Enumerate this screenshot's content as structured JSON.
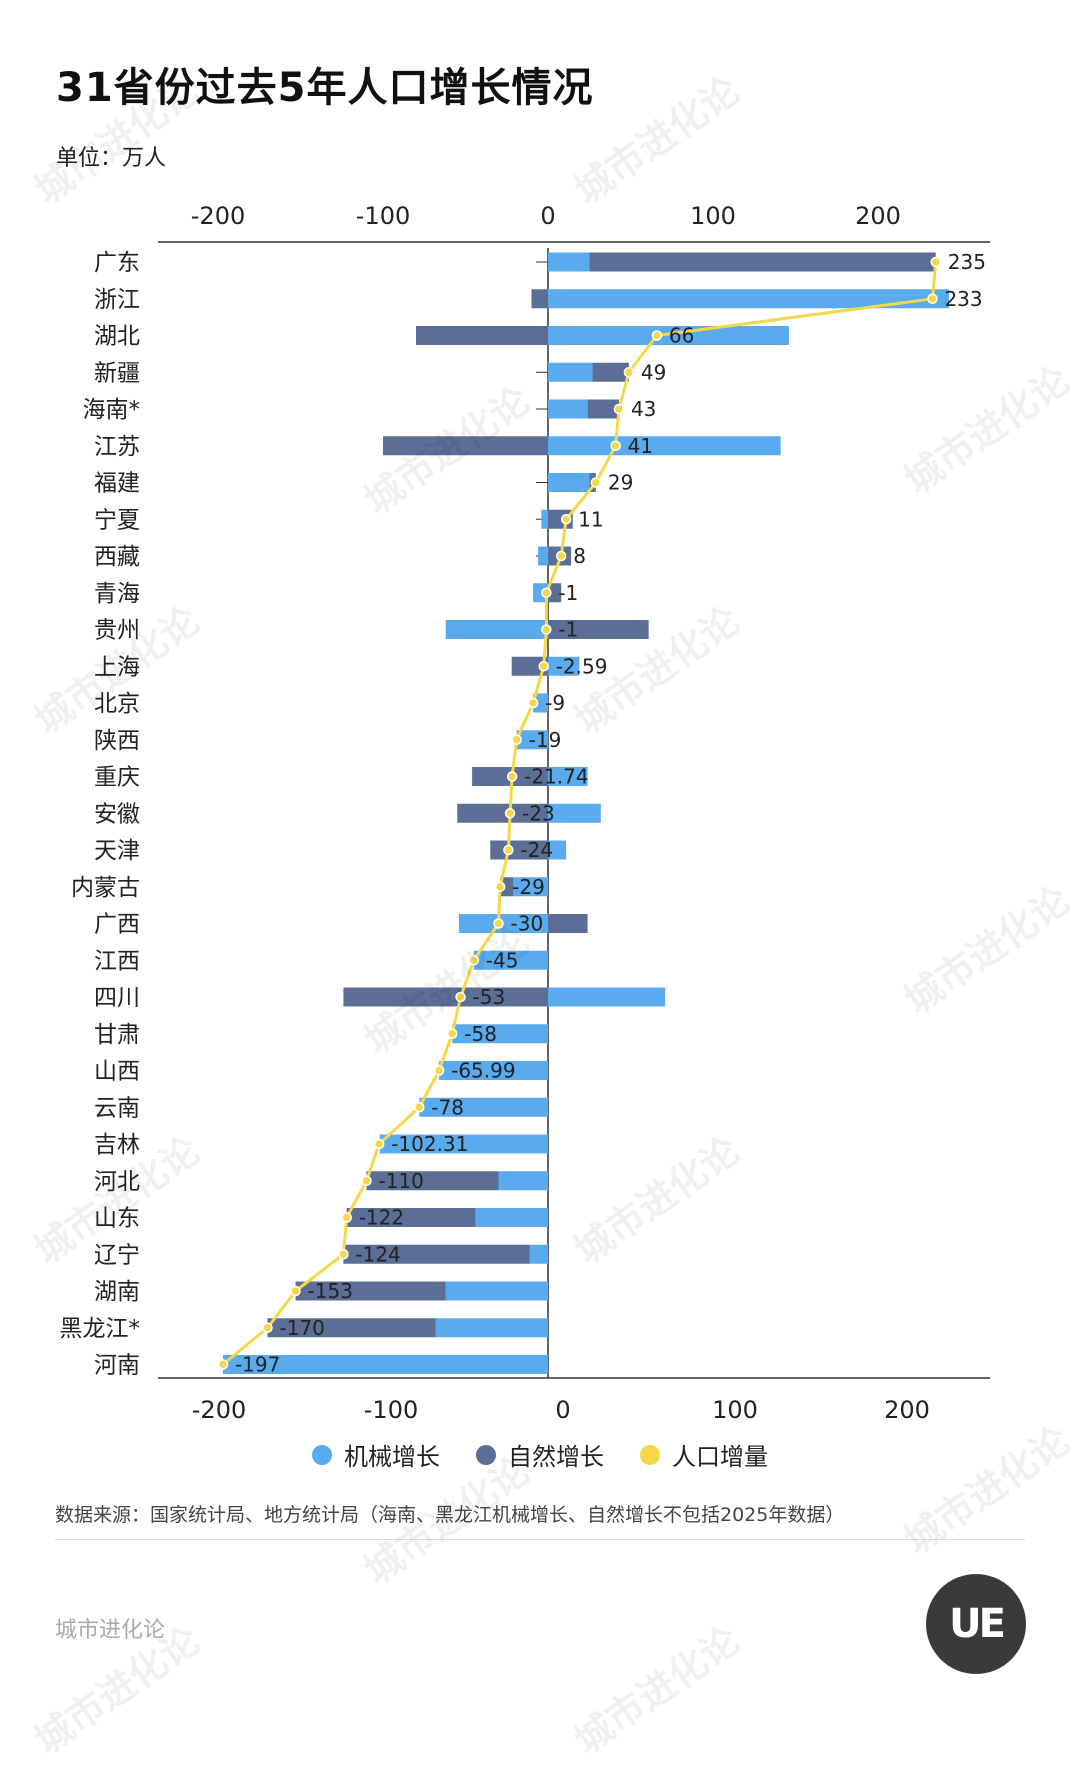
{
  "title": "31省份过去5年人口增长情况",
  "unit": "单位：万人",
  "source": "数据来源：国家统计局、地方统计局（海南、黑龙江机械增长、自然增长不包括2025年数据）",
  "footer": "城市进化论",
  "logo_text": "UE",
  "watermark": "城市进化论",
  "colors": {
    "mechanical": "#5aaaee",
    "natural": "#5b6e96",
    "total": "#f4d84a"
  },
  "chart_data": {
    "type": "bar",
    "orientation": "horizontal",
    "stacked": "diverging",
    "xlim": [
      -235,
      270
    ],
    "top_ticks": [
      -200,
      -100,
      0,
      100,
      200
    ],
    "bottom_ticks": [
      -200,
      -100,
      0,
      100,
      200
    ],
    "legend": {
      "placement": "bottom",
      "items": [
        "机械增长",
        "自然增长",
        "人口增量"
      ]
    },
    "categories": [
      "广东",
      "浙江",
      "湖北",
      "新疆",
      "海南*",
      "江苏",
      "福建",
      "宁夏",
      "西藏",
      "青海",
      "贵州",
      "上海",
      "北京",
      "陕西",
      "重庆",
      "安徽",
      "天津",
      "内蒙古",
      "广西",
      "江西",
      "四川",
      "甘肃",
      "山西",
      "云南",
      "吉林",
      "河北",
      "山东",
      "辽宁",
      "湖南",
      "黑龙江*",
      "河南"
    ],
    "series": [
      {
        "name": "机械增长",
        "values": [
          25,
          243,
          146,
          27,
          24,
          141,
          25,
          -4,
          -6,
          -9,
          -62,
          19,
          -9,
          -19,
          24,
          32,
          11,
          -21,
          -54,
          -45,
          71,
          -58,
          -66,
          -78,
          -102,
          -30,
          -44,
          -11,
          -62,
          -68,
          -197
        ]
      },
      {
        "name": "自然增长",
        "values": [
          210,
          -10,
          -80,
          22,
          19,
          -100,
          4,
          15,
          14,
          8,
          61,
          -22,
          0,
          0,
          -46,
          -55,
          -35,
          -8,
          24,
          0,
          -124,
          0,
          0,
          0,
          0,
          -80,
          -78,
          -113,
          -91,
          -102,
          0
        ]
      },
      {
        "name": "人口增量",
        "values": [
          235,
          233,
          66,
          49,
          43,
          41,
          29,
          11,
          8,
          -1,
          -1,
          -2.59,
          -9,
          -19,
          -21.74,
          -23,
          -24,
          -29,
          -30,
          -45,
          -53,
          -58,
          -65.99,
          -78,
          -102.31,
          -110,
          -122,
          -124,
          -153,
          -170,
          -197
        ]
      }
    ]
  }
}
